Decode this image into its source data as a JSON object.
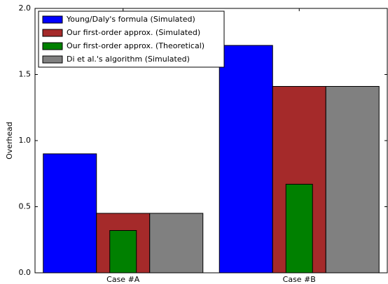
{
  "chart_data": {
    "type": "bar",
    "y_label": "Overhead",
    "categories": [
      "Case #A",
      "Case #B"
    ],
    "series": [
      {
        "name": "Young/Daly's formula (Simulated)",
        "color": "#0000ff",
        "values": [
          0.9,
          1.72
        ]
      },
      {
        "name": "Our first-order approx. (Simulated)",
        "color": "#a52a2a",
        "values": [
          0.45,
          1.41
        ]
      },
      {
        "name": "Our first-order approx. (Theoretical)",
        "color": "#008000",
        "values": [
          0.32,
          0.67
        ]
      },
      {
        "name": "Di et al.'s algorithm (Simulated)",
        "color": "#808080",
        "values": [
          0.45,
          1.41
        ]
      }
    ],
    "ylim": [
      0,
      2
    ],
    "yticks": [
      {
        "value": 0,
        "label": "0.0"
      },
      {
        "value": 0.5,
        "label": "0.5"
      },
      {
        "value": 1,
        "label": "1.0"
      },
      {
        "value": 1.5,
        "label": "1.5"
      },
      {
        "value": 2,
        "label": "2.0"
      }
    ],
    "legend": "upper left"
  }
}
